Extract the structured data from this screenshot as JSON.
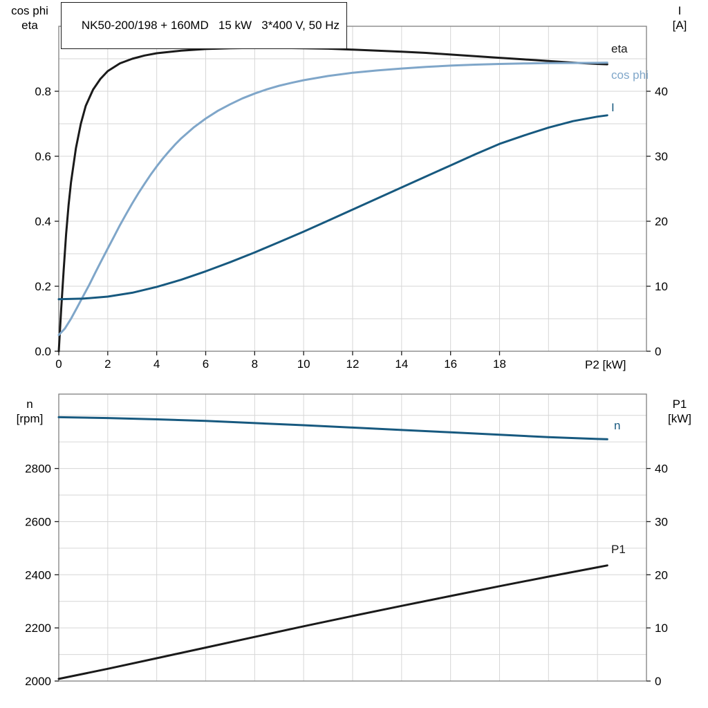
{
  "colors": {
    "black": "#1a1a1a",
    "light_blue": "#7fa6c9",
    "dark_blue": "#17597f",
    "grid": "#d6d6d6",
    "frame": "#7f7f7f",
    "tick": "#1a1a1a",
    "text": "#000000",
    "background": "#ffffff"
  },
  "chart_data": [
    {
      "id": "top",
      "type": "line",
      "title": "NK50-200/198 + 160MD   15 kW   3*400 V, 50 Hz",
      "grid_on": true,
      "legend_position": "right-inside",
      "x_axis": {
        "label": "P2 [kW]",
        "min": 0,
        "max": 24,
        "ticks": [
          {
            "v": 0,
            "label": "0"
          },
          {
            "v": 2,
            "label": "2"
          },
          {
            "v": 4,
            "label": "4"
          },
          {
            "v": 6,
            "label": "6"
          },
          {
            "v": 8,
            "label": "8"
          },
          {
            "v": 10,
            "label": "10"
          },
          {
            "v": 12,
            "label": "12"
          },
          {
            "v": 14,
            "label": "14"
          },
          {
            "v": 16,
            "label": "16"
          },
          {
            "v": 18,
            "label": "18"
          }
        ],
        "grid": [
          2,
          4,
          6,
          8,
          10,
          12,
          14,
          16,
          18,
          20,
          22
        ]
      },
      "left_axis": {
        "title_lines": [
          "cos phi",
          "eta"
        ],
        "min": 0,
        "max": 1.0,
        "ticks": [
          {
            "v": 0.0,
            "label": "0.0"
          },
          {
            "v": 0.2,
            "label": "0.2"
          },
          {
            "v": 0.4,
            "label": "0.4"
          },
          {
            "v": 0.6,
            "label": "0.6"
          },
          {
            "v": 0.8,
            "label": "0.8"
          }
        ],
        "grid": [
          0.1,
          0.2,
          0.3,
          0.4,
          0.5,
          0.6,
          0.7,
          0.8,
          0.9
        ]
      },
      "right_axis": {
        "title_lines": [
          "I",
          "[A]"
        ],
        "min": 0,
        "max": 50,
        "ticks": [
          {
            "v": 0,
            "label": "0"
          },
          {
            "v": 10,
            "label": "10"
          },
          {
            "v": 20,
            "label": "20"
          },
          {
            "v": 30,
            "label": "30"
          },
          {
            "v": 40,
            "label": "40"
          }
        ],
        "grid": []
      },
      "series": [
        {
          "name": "eta",
          "legend": "eta",
          "axis": "left",
          "color": "#1a1a1a",
          "points": [
            [
              0,
              0
            ],
            [
              0.1,
              0.13
            ],
            [
              0.2,
              0.25
            ],
            [
              0.3,
              0.36
            ],
            [
              0.4,
              0.45
            ],
            [
              0.5,
              0.52
            ],
            [
              0.7,
              0.625
            ],
            [
              0.9,
              0.7
            ],
            [
              1.1,
              0.755
            ],
            [
              1.4,
              0.805
            ],
            [
              1.7,
              0.838
            ],
            [
              2,
              0.862
            ],
            [
              2.5,
              0.886
            ],
            [
              3,
              0.9
            ],
            [
              3.5,
              0.91
            ],
            [
              4,
              0.917
            ],
            [
              5,
              0.925
            ],
            [
              6,
              0.93
            ],
            [
              7,
              0.9325
            ],
            [
              8,
              0.9335
            ],
            [
              9,
              0.9335
            ],
            [
              10,
              0.9325
            ],
            [
              11,
              0.931
            ],
            [
              12,
              0.928
            ],
            [
              13,
              0.925
            ],
            [
              14,
              0.922
            ],
            [
              15,
              0.918
            ],
            [
              16,
              0.913
            ],
            [
              17,
              0.908
            ],
            [
              18,
              0.903
            ],
            [
              19,
              0.898
            ],
            [
              20,
              0.893
            ],
            [
              21,
              0.888
            ],
            [
              22,
              0.884
            ],
            [
              22.4,
              0.883
            ]
          ]
        },
        {
          "name": "cos-phi",
          "legend": "cos phi",
          "axis": "left",
          "color": "#7fa6c9",
          "points": [
            [
              0,
              0.05
            ],
            [
              0.25,
              0.07
            ],
            [
              0.5,
              0.1
            ],
            [
              0.75,
              0.135
            ],
            [
              1,
              0.17
            ],
            [
              1.25,
              0.205
            ],
            [
              1.5,
              0.243
            ],
            [
              1.75,
              0.28
            ],
            [
              2,
              0.316
            ],
            [
              2.25,
              0.352
            ],
            [
              2.5,
              0.388
            ],
            [
              2.75,
              0.422
            ],
            [
              3,
              0.455
            ],
            [
              3.25,
              0.486
            ],
            [
              3.5,
              0.515
            ],
            [
              3.75,
              0.543
            ],
            [
              4,
              0.569
            ],
            [
              4.25,
              0.593
            ],
            [
              4.5,
              0.615
            ],
            [
              4.75,
              0.636
            ],
            [
              5,
              0.655
            ],
            [
              5.5,
              0.688
            ],
            [
              6,
              0.716
            ],
            [
              6.5,
              0.74
            ],
            [
              7,
              0.76
            ],
            [
              7.5,
              0.778
            ],
            [
              8,
              0.793
            ],
            [
              8.5,
              0.806
            ],
            [
              9,
              0.817
            ],
            [
              9.5,
              0.826
            ],
            [
              10,
              0.834
            ],
            [
              11,
              0.847
            ],
            [
              12,
              0.857
            ],
            [
              13,
              0.864
            ],
            [
              14,
              0.87
            ],
            [
              15,
              0.875
            ],
            [
              16,
              0.879
            ],
            [
              17,
              0.882
            ],
            [
              18,
              0.884
            ],
            [
              19,
              0.8855
            ],
            [
              20,
              0.8865
            ],
            [
              21,
              0.887
            ],
            [
              22,
              0.8875
            ],
            [
              22.4,
              0.888
            ]
          ]
        },
        {
          "name": "current",
          "legend": "I",
          "axis": "right",
          "color": "#17597f",
          "points": [
            [
              0,
              8.0
            ],
            [
              1,
              8.1
            ],
            [
              2,
              8.4
            ],
            [
              3,
              9.0
            ],
            [
              4,
              9.9
            ],
            [
              5,
              11.0
            ],
            [
              6,
              12.3
            ],
            [
              7,
              13.7
            ],
            [
              8,
              15.2
            ],
            [
              9,
              16.8
            ],
            [
              10,
              18.4
            ],
            [
              11,
              20.1
            ],
            [
              12,
              21.8
            ],
            [
              13,
              23.5
            ],
            [
              14,
              25.2
            ],
            [
              15,
              26.9
            ],
            [
              16,
              28.6
            ],
            [
              17,
              30.3
            ],
            [
              18,
              31.9
            ],
            [
              19,
              33.2
            ],
            [
              20,
              34.4
            ],
            [
              21,
              35.4
            ],
            [
              22,
              36.1
            ],
            [
              22.4,
              36.3
            ]
          ]
        }
      ]
    },
    {
      "id": "bottom",
      "type": "line",
      "title": "",
      "grid_on": true,
      "legend_position": "right-inside",
      "x_axis": {
        "label": "",
        "min": 0,
        "max": 24,
        "ticks": [],
        "grid": [
          2,
          4,
          6,
          8,
          10,
          12,
          14,
          16,
          18,
          20,
          22
        ]
      },
      "left_axis": {
        "title_lines": [
          "n",
          "[rpm]"
        ],
        "min": 2000,
        "max": 3080,
        "ticks": [
          {
            "v": 2000,
            "label": "2000"
          },
          {
            "v": 2200,
            "label": "2200"
          },
          {
            "v": 2400,
            "label": "2400"
          },
          {
            "v": 2600,
            "label": "2600"
          },
          {
            "v": 2800,
            "label": "2800"
          }
        ],
        "grid": [
          2100,
          2200,
          2300,
          2400,
          2500,
          2600,
          2700,
          2800,
          2900,
          3000
        ]
      },
      "right_axis": {
        "title_lines": [
          "P1",
          "[kW]"
        ],
        "min": 0,
        "max": 54,
        "ticks": [
          {
            "v": 0,
            "label": "0"
          },
          {
            "v": 10,
            "label": "10"
          },
          {
            "v": 20,
            "label": "20"
          },
          {
            "v": 30,
            "label": "30"
          },
          {
            "v": 40,
            "label": "40"
          }
        ],
        "grid": []
      },
      "series": [
        {
          "name": "speed",
          "legend": "n",
          "axis": "left",
          "color": "#17597f",
          "points": [
            [
              0,
              2993
            ],
            [
              2,
              2990
            ],
            [
              4,
              2985
            ],
            [
              6,
              2979
            ],
            [
              8,
              2971
            ],
            [
              10,
              2963
            ],
            [
              12,
              2954
            ],
            [
              14,
              2945
            ],
            [
              16,
              2936
            ],
            [
              18,
              2927
            ],
            [
              20,
              2918
            ],
            [
              22,
              2911
            ],
            [
              22.4,
              2910
            ]
          ]
        },
        {
          "name": "p1",
          "legend": "P1",
          "axis": "right",
          "color": "#1a1a1a",
          "points": [
            [
              0,
              0.4
            ],
            [
              2,
              2.3
            ],
            [
              4,
              4.3
            ],
            [
              6,
              6.3
            ],
            [
              8,
              8.3
            ],
            [
              10,
              10.3
            ],
            [
              12,
              12.25
            ],
            [
              14,
              14.15
            ],
            [
              16,
              16.0
            ],
            [
              18,
              17.85
            ],
            [
              20,
              19.65
            ],
            [
              22,
              21.4
            ],
            [
              22.4,
              21.75
            ]
          ]
        }
      ]
    }
  ]
}
